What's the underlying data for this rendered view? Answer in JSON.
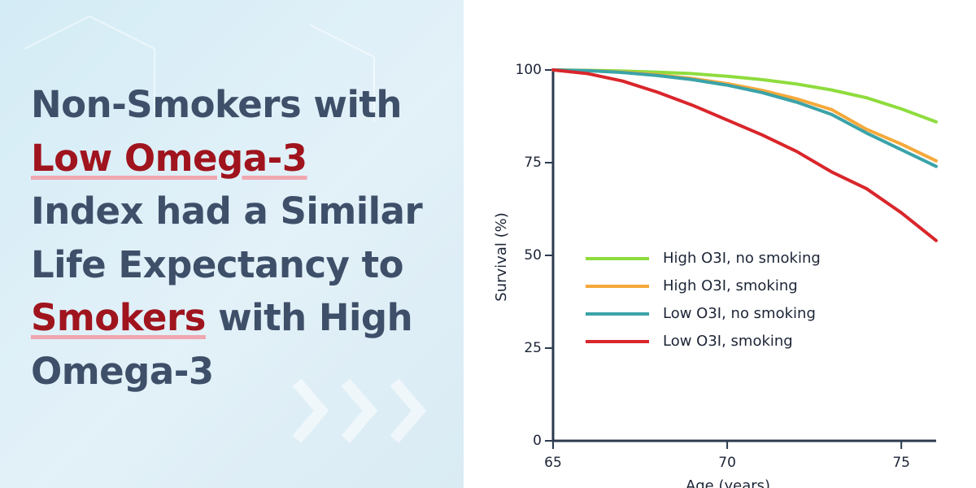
{
  "headline_lines": [
    [
      {
        "text": "Non-Smokers with"
      }
    ],
    [
      {
        "text": "Low Omega-3",
        "highlight": true
      }
    ],
    [
      {
        "text": "Index had a Similar"
      }
    ],
    [
      {
        "text": "Life Expectancy to"
      }
    ],
    [
      {
        "text": "Smokers",
        "highlight": true
      },
      {
        "text": "with High"
      }
    ],
    [
      {
        "text": "Omega-3"
      }
    ]
  ],
  "chart_data": {
    "type": "line",
    "x_label": "Age (years)",
    "y_label": "Survival (%)",
    "x": [
      65,
      66,
      67,
      68,
      69,
      70,
      71,
      72,
      73,
      74,
      75,
      76
    ],
    "series": [
      {
        "name": "High O3I, no smoking",
        "color": "#8fdc3e",
        "values": [
          100,
          99.9,
          99.7,
          99.4,
          99,
          98.3,
          97.4,
          96.2,
          94.6,
          92.5,
          89.5,
          86
        ]
      },
      {
        "name": "High O3I, smoking",
        "color": "#f5a93a",
        "values": [
          100,
          99.8,
          99.4,
          98.7,
          97.7,
          96.3,
          94.5,
          92.2,
          89.3,
          84,
          80,
          75.5
        ]
      },
      {
        "name": "Low O3I, no smoking",
        "color": "#3aa3a8",
        "values": [
          100,
          99.8,
          99.3,
          98.5,
          97.4,
          95.9,
          93.9,
          91.3,
          88,
          83,
          78.5,
          74
        ]
      },
      {
        "name": "Low O3I, smoking",
        "color": "#d9262b",
        "values": [
          100,
          99,
          97,
          94,
          90.5,
          86.5,
          82.5,
          78,
          72.5,
          68,
          61.5,
          54
        ]
      }
    ],
    "xlim": [
      65,
      76
    ],
    "ylim": [
      0,
      100
    ],
    "xticks": [
      65,
      70,
      75
    ],
    "yticks": [
      0,
      25,
      50,
      75,
      100
    ]
  }
}
